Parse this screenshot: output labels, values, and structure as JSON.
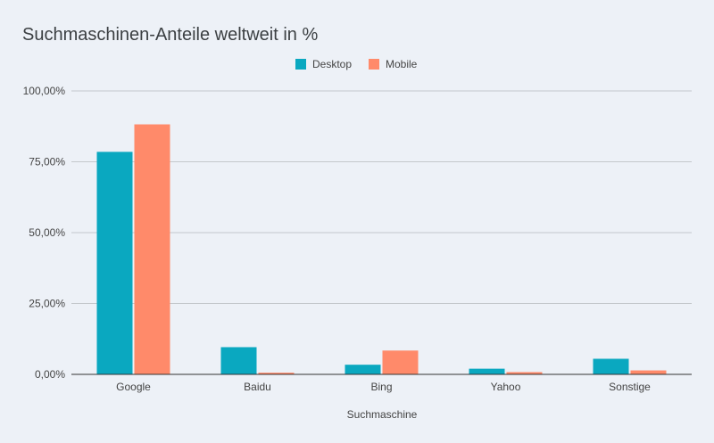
{
  "chart_data": {
    "type": "bar",
    "title": "Suchmaschinen-Anteile weltweit in %",
    "xlabel": "Suchmaschine",
    "ylabel": "",
    "ylim": [
      0,
      100
    ],
    "yticks": [
      0,
      25,
      50,
      75,
      100
    ],
    "ytick_labels": [
      "0,00%",
      "25,00%",
      "50,00%",
      "75,00%",
      "100,00%"
    ],
    "categories": [
      "Google",
      "Baidu",
      "Bing",
      "Yahoo",
      "Sonstige"
    ],
    "series": [
      {
        "name": "Desktop",
        "color": "#0aa8c0",
        "values": [
          78.5,
          9.6,
          3.4,
          2.0,
          5.5
        ]
      },
      {
        "name": "Mobile",
        "color": "#ff8a6a",
        "values": [
          88.2,
          0.6,
          8.4,
          0.8,
          1.4
        ]
      }
    ],
    "legend_position": "top-center",
    "grid": true
  }
}
